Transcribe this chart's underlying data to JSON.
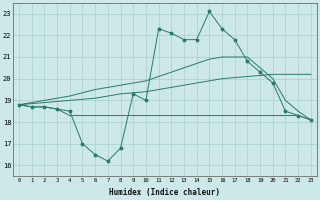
{
  "xlabel": "Humidex (Indice chaleur)",
  "x": [
    0,
    1,
    2,
    3,
    4,
    5,
    6,
    7,
    8,
    9,
    10,
    11,
    12,
    13,
    14,
    15,
    16,
    17,
    18,
    19,
    20,
    21,
    22,
    23
  ],
  "line1": [
    18.8,
    18.7,
    18.7,
    18.6,
    18.5,
    17.0,
    16.5,
    16.2,
    16.8,
    19.3,
    19.0,
    22.3,
    22.1,
    21.8,
    21.8,
    23.1,
    22.3,
    21.8,
    20.8,
    20.3,
    19.8,
    18.5,
    18.3,
    18.1
  ],
  "line2": [
    18.8,
    18.7,
    18.7,
    18.6,
    18.3,
    18.3,
    18.3,
    18.3,
    18.3,
    18.3,
    18.3,
    18.3,
    18.3,
    18.3,
    18.3,
    18.3,
    18.3,
    18.3,
    18.3,
    18.3,
    18.3,
    18.3,
    18.3,
    18.1
  ],
  "line3": [
    18.8,
    18.85,
    18.9,
    18.95,
    19.0,
    19.05,
    19.1,
    19.2,
    19.3,
    19.35,
    19.4,
    19.5,
    19.6,
    19.7,
    19.8,
    19.9,
    20.0,
    20.05,
    20.1,
    20.15,
    20.2,
    20.2,
    20.2,
    20.2
  ],
  "line4": [
    18.8,
    18.9,
    19.0,
    19.1,
    19.2,
    19.35,
    19.5,
    19.6,
    19.7,
    19.8,
    19.9,
    20.1,
    20.3,
    20.5,
    20.7,
    20.9,
    21.0,
    21.0,
    21.0,
    20.5,
    20.0,
    19.0,
    18.5,
    18.1
  ],
  "line_color": "#2a7a6a",
  "bg_color": "#cce8e8",
  "grid_color": "#aacece",
  "ylim": [
    15.5,
    23.5
  ],
  "xlim": [
    -0.5,
    23.5
  ],
  "yticks": [
    16,
    17,
    18,
    19,
    20,
    21,
    22,
    23
  ],
  "xticks": [
    0,
    1,
    2,
    3,
    4,
    5,
    6,
    7,
    8,
    9,
    10,
    11,
    12,
    13,
    14,
    15,
    16,
    17,
    18,
    19,
    20,
    21,
    22,
    23
  ]
}
